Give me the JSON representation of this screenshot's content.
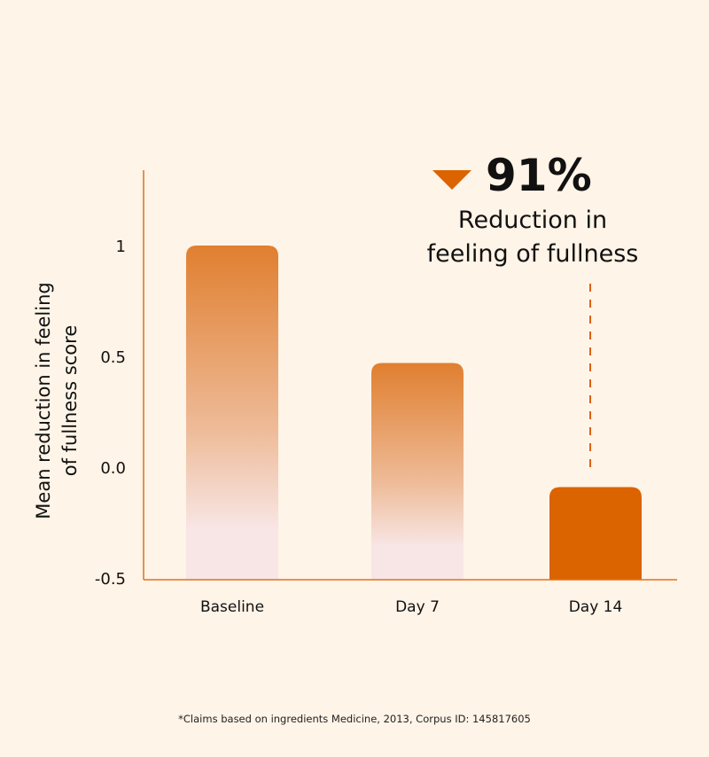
{
  "chart_data": {
    "type": "bar",
    "categories": [
      "Baseline",
      "Day 7",
      "Day 14"
    ],
    "values": [
      1.0,
      0.47,
      -0.09
    ],
    "ylabel": "Mean reduction in feeling of fullness score",
    "ylabel_lines": [
      "Mean reduction in feeling",
      "of fullness score"
    ],
    "xlabel": "",
    "ylim": [
      -0.5,
      1.3
    ],
    "yticks": [
      -0.5,
      0.0,
      0.5,
      1
    ],
    "ytick_labels": [
      "-0.5",
      "0.0",
      "0.5",
      "1"
    ],
    "grid": false,
    "annotation": {
      "value": "91%",
      "text_lines": [
        "Reduction in",
        "feeling of fullness"
      ],
      "icon": "down-triangle-icon",
      "target": "Day 14"
    },
    "colors": {
      "accent": "#db6300",
      "gradient_top": "#e07f30",
      "gradient_bottom": "#f8e6e6",
      "axis": "#e07020",
      "background": "#fef4e7"
    }
  },
  "footnote": "*Claims based on ingredients Medicine, 2013, Corpus ID: 145817605"
}
